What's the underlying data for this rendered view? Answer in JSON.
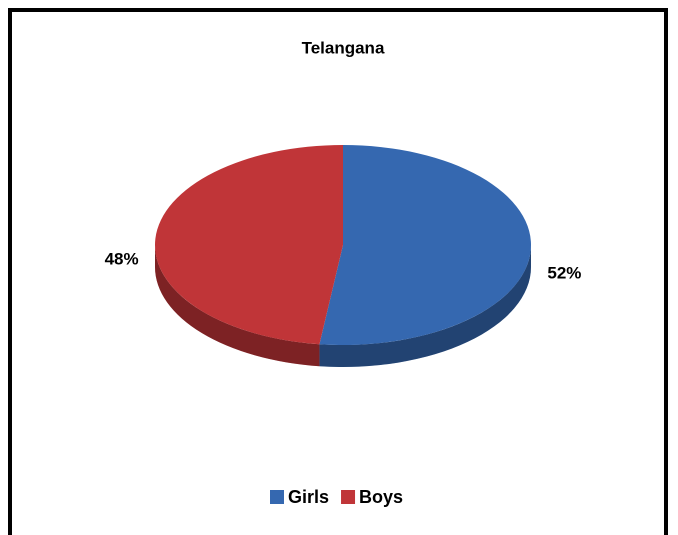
{
  "chart_data": {
    "type": "pie",
    "title": "Telangana",
    "categories": [
      "Girls",
      "Boys"
    ],
    "values": [
      52,
      48
    ],
    "value_labels": [
      "52%",
      "48%"
    ],
    "colors": [
      "#3568b0",
      "#c03538"
    ],
    "legend": "bottom"
  }
}
